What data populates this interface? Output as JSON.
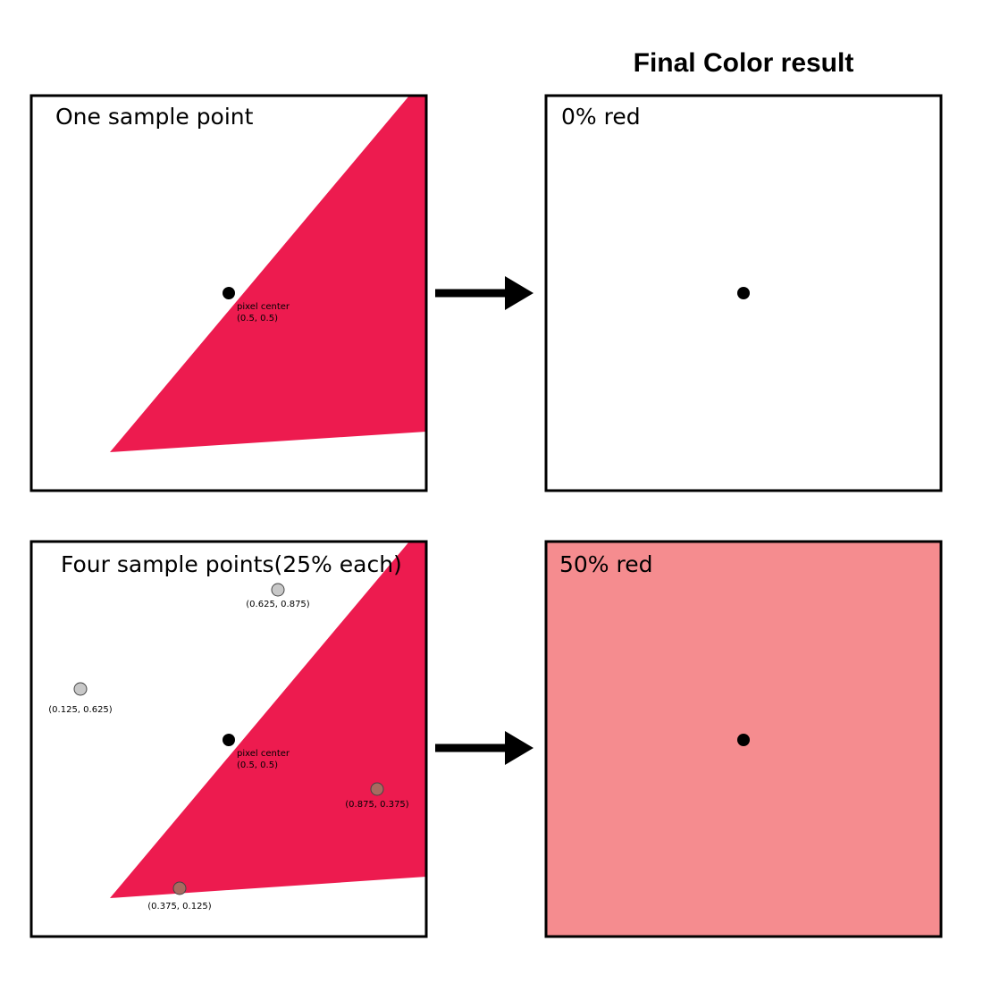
{
  "title": "Final Color result",
  "top_row": {
    "left_label": "One sample point",
    "center_label_line1": "pixel center",
    "center_label_line2": "(0.5, 0.5)",
    "right_label": "0% red"
  },
  "bottom_row": {
    "left_label": "Four sample points(25% each)",
    "center_label_line1": "pixel center",
    "center_label_line2": "(0.5, 0.5)",
    "samples": [
      {
        "label": "(0.625, 0.875)",
        "covered": false
      },
      {
        "label": "(0.125, 0.625)",
        "covered": false
      },
      {
        "label": "(0.875, 0.375)",
        "covered": true
      },
      {
        "label": "(0.375, 0.125)",
        "covered": true
      }
    ],
    "right_label": "50% red"
  },
  "colors": {
    "triangle": "#ED1B4F",
    "result_fill": "#F58C8F",
    "sample_uncovered": "#C8C8C8",
    "sample_covered": "#A86A60",
    "border": "#000000"
  }
}
